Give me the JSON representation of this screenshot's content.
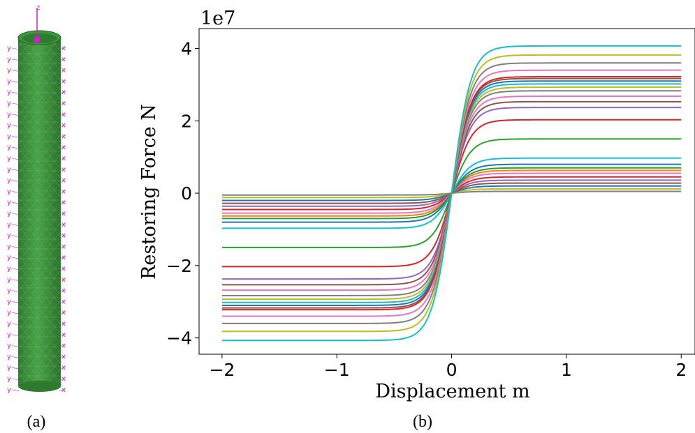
{
  "captions": {
    "left": "(a)",
    "right": "(b)"
  },
  "model_view": {
    "axis_label": "z",
    "node_label_x": "x",
    "node_label_y": "y",
    "cylinder_color": "#3a8e3a",
    "marker_color": "#cc22cc"
  },
  "chart_data": {
    "type": "line",
    "title": "",
    "xlabel": "Displacement m",
    "ylabel": "Restoring Force N",
    "offset_text": "1e7",
    "xlim": [
      -2.2,
      2.12
    ],
    "ylim": [
      -4.45,
      4.55
    ],
    "xticks": [
      -2,
      -1,
      0,
      1,
      2
    ],
    "xtick_labels": [
      "−2",
      "−1",
      "0",
      "1",
      "2"
    ],
    "yticks": [
      -4,
      -2,
      0,
      2,
      4
    ],
    "ytick_labels": [
      "−4",
      "−2",
      "0",
      "2",
      "4"
    ],
    "grid": false,
    "legend": false,
    "x_range": [
      -2,
      2
    ],
    "curve_shape": "tanh",
    "steepness": 6,
    "series": [
      {
        "amplitude": 0.05,
        "color": "#7f7f7f"
      },
      {
        "amplitude": 0.12,
        "color": "#bcbd22"
      },
      {
        "amplitude": 0.2,
        "color": "#1f77b4"
      },
      {
        "amplitude": 0.28,
        "color": "#8c564b"
      },
      {
        "amplitude": 0.36,
        "color": "#9467bd"
      },
      {
        "amplitude": 0.45,
        "color": "#d62728"
      },
      {
        "amplitude": 0.55,
        "color": "#e377c2"
      },
      {
        "amplitude": 0.63,
        "color": "#ff7f0e"
      },
      {
        "amplitude": 0.7,
        "color": "#2ca02c"
      },
      {
        "amplitude": 0.8,
        "color": "#1f77b4"
      },
      {
        "amplitude": 0.97,
        "color": "#17becf"
      },
      {
        "amplitude": 1.5,
        "color": "#2ca02c"
      },
      {
        "amplitude": 2.03,
        "color": "#d62728"
      },
      {
        "amplitude": 2.37,
        "color": "#9467bd"
      },
      {
        "amplitude": 2.53,
        "color": "#8c564b"
      },
      {
        "amplitude": 2.68,
        "color": "#e377c2"
      },
      {
        "amplitude": 2.83,
        "color": "#7f7f7f"
      },
      {
        "amplitude": 2.93,
        "color": "#bcbd22"
      },
      {
        "amplitude": 3.02,
        "color": "#17becf"
      },
      {
        "amplitude": 3.1,
        "color": "#1f77b4"
      },
      {
        "amplitude": 3.17,
        "color": "#8c564b"
      },
      {
        "amplitude": 3.22,
        "color": "#d62728"
      },
      {
        "amplitude": 3.4,
        "color": "#e377c2"
      },
      {
        "amplitude": 3.6,
        "color": "#7f7f7f"
      },
      {
        "amplitude": 3.82,
        "color": "#bcbd22"
      },
      {
        "amplitude": 4.07,
        "color": "#17becf"
      }
    ]
  }
}
